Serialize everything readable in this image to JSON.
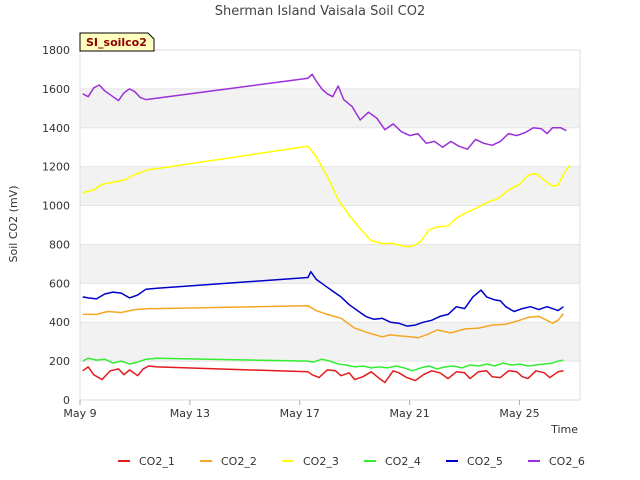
{
  "chart_data": {
    "type": "line",
    "title": "Sherman Island Vaisala Soil CO2",
    "site_tag": "SI_soilco2",
    "xlabel": "Time",
    "ylabel": "Soil CO2 (mV)",
    "x_tick_labels": [
      "May 9",
      "May 13",
      "May 17",
      "May 21",
      "May 25"
    ],
    "x_tick_days": [
      9,
      13,
      17,
      21,
      25
    ],
    "xlim": [
      9,
      27.2
    ],
    "ylim": [
      0,
      1800
    ],
    "y_ticks": [
      0,
      200,
      400,
      600,
      800,
      1000,
      1200,
      1400,
      1600,
      1800
    ],
    "grid": "horizontal alternating bands",
    "legend_position": "bottom",
    "x_unit": "day of May",
    "series": [
      {
        "name": "CO2_1",
        "color": "#e31a1c",
        "points": [
          [
            9.1,
            150
          ],
          [
            9.3,
            170
          ],
          [
            9.5,
            130
          ],
          [
            9.8,
            105
          ],
          [
            10.1,
            150
          ],
          [
            10.4,
            160
          ],
          [
            10.6,
            130
          ],
          [
            10.8,
            155
          ],
          [
            11.1,
            125
          ],
          [
            11.3,
            160
          ],
          [
            11.5,
            175
          ],
          [
            11.8,
            170
          ],
          [
            17.3,
            145
          ],
          [
            17.45,
            130
          ],
          [
            17.7,
            115
          ],
          [
            18.0,
            155
          ],
          [
            18.3,
            150
          ],
          [
            18.5,
            125
          ],
          [
            18.8,
            140
          ],
          [
            19.0,
            105
          ],
          [
            19.3,
            120
          ],
          [
            19.6,
            145
          ],
          [
            19.9,
            110
          ],
          [
            20.1,
            90
          ],
          [
            20.4,
            150
          ],
          [
            20.6,
            140
          ],
          [
            20.9,
            115
          ],
          [
            21.2,
            100
          ],
          [
            21.5,
            130
          ],
          [
            21.8,
            150
          ],
          [
            22.1,
            140
          ],
          [
            22.4,
            110
          ],
          [
            22.7,
            145
          ],
          [
            23.0,
            140
          ],
          [
            23.2,
            110
          ],
          [
            23.5,
            145
          ],
          [
            23.8,
            150
          ],
          [
            24.0,
            120
          ],
          [
            24.3,
            115
          ],
          [
            24.6,
            150
          ],
          [
            24.9,
            145
          ],
          [
            25.1,
            120
          ],
          [
            25.3,
            110
          ],
          [
            25.6,
            150
          ],
          [
            25.9,
            140
          ],
          [
            26.1,
            115
          ],
          [
            26.4,
            145
          ],
          [
            26.6,
            150
          ]
        ]
      },
      {
        "name": "CO2_2",
        "color": "#f5a623",
        "points": [
          [
            9.1,
            440
          ],
          [
            9.6,
            440
          ],
          [
            10.0,
            455
          ],
          [
            10.5,
            450
          ],
          [
            11.0,
            465
          ],
          [
            11.5,
            470
          ],
          [
            11.8,
            470
          ],
          [
            17.3,
            485
          ],
          [
            17.6,
            460
          ],
          [
            18.0,
            440
          ],
          [
            18.5,
            420
          ],
          [
            19.0,
            370
          ],
          [
            19.5,
            345
          ],
          [
            20.0,
            325
          ],
          [
            20.3,
            335
          ],
          [
            20.6,
            330
          ],
          [
            21.0,
            325
          ],
          [
            21.3,
            320
          ],
          [
            21.6,
            335
          ],
          [
            22.0,
            360
          ],
          [
            22.5,
            345
          ],
          [
            23.0,
            365
          ],
          [
            23.5,
            370
          ],
          [
            24.0,
            385
          ],
          [
            24.5,
            390
          ],
          [
            25.0,
            410
          ],
          [
            25.3,
            425
          ],
          [
            25.7,
            430
          ],
          [
            26.0,
            410
          ],
          [
            26.2,
            395
          ],
          [
            26.4,
            410
          ],
          [
            26.6,
            445
          ]
        ]
      },
      {
        "name": "CO2_3",
        "color": "#ffff00",
        "points": [
          [
            9.1,
            1065
          ],
          [
            9.5,
            1080
          ],
          [
            9.8,
            1110
          ],
          [
            10.2,
            1120
          ],
          [
            10.6,
            1130
          ],
          [
            11.0,
            1160
          ],
          [
            11.5,
            1185
          ],
          [
            11.8,
            1190
          ],
          [
            17.3,
            1305
          ],
          [
            17.6,
            1250
          ],
          [
            18.0,
            1150
          ],
          [
            18.4,
            1030
          ],
          [
            18.8,
            950
          ],
          [
            19.2,
            880
          ],
          [
            19.6,
            820
          ],
          [
            20.0,
            805
          ],
          [
            20.4,
            805
          ],
          [
            20.8,
            790
          ],
          [
            21.1,
            790
          ],
          [
            21.4,
            815
          ],
          [
            21.7,
            875
          ],
          [
            22.0,
            890
          ],
          [
            22.4,
            895
          ],
          [
            22.7,
            935
          ],
          [
            23.0,
            960
          ],
          [
            23.4,
            985
          ],
          [
            23.8,
            1015
          ],
          [
            24.2,
            1035
          ],
          [
            24.6,
            1080
          ],
          [
            25.0,
            1110
          ],
          [
            25.3,
            1155
          ],
          [
            25.6,
            1165
          ],
          [
            25.9,
            1130
          ],
          [
            26.2,
            1100
          ],
          [
            26.4,
            1105
          ],
          [
            26.6,
            1160
          ],
          [
            26.8,
            1205
          ]
        ]
      },
      {
        "name": "CO2_4",
        "color": "#33ee33",
        "points": [
          [
            9.1,
            200
          ],
          [
            9.3,
            215
          ],
          [
            9.6,
            205
          ],
          [
            9.9,
            210
          ],
          [
            10.2,
            190
          ],
          [
            10.5,
            200
          ],
          [
            10.8,
            185
          ],
          [
            11.1,
            195
          ],
          [
            11.4,
            210
          ],
          [
            11.8,
            215
          ],
          [
            17.3,
            200
          ],
          [
            17.5,
            195
          ],
          [
            17.8,
            210
          ],
          [
            18.1,
            200
          ],
          [
            18.4,
            185
          ],
          [
            18.7,
            180
          ],
          [
            19.0,
            170
          ],
          [
            19.3,
            175
          ],
          [
            19.6,
            165
          ],
          [
            19.9,
            170
          ],
          [
            20.2,
            165
          ],
          [
            20.5,
            175
          ],
          [
            20.8,
            165
          ],
          [
            21.1,
            150
          ],
          [
            21.4,
            165
          ],
          [
            21.7,
            175
          ],
          [
            22.0,
            160
          ],
          [
            22.3,
            170
          ],
          [
            22.6,
            175
          ],
          [
            22.9,
            165
          ],
          [
            23.2,
            180
          ],
          [
            23.5,
            175
          ],
          [
            23.8,
            185
          ],
          [
            24.1,
            175
          ],
          [
            24.4,
            190
          ],
          [
            24.7,
            180
          ],
          [
            25.0,
            185
          ],
          [
            25.3,
            175
          ],
          [
            25.6,
            180
          ],
          [
            25.9,
            185
          ],
          [
            26.2,
            190
          ],
          [
            26.4,
            200
          ],
          [
            26.6,
            205
          ]
        ]
      },
      {
        "name": "CO2_5",
        "color": "#0000cc",
        "points": [
          [
            9.1,
            530
          ],
          [
            9.3,
            525
          ],
          [
            9.6,
            520
          ],
          [
            9.9,
            545
          ],
          [
            10.2,
            555
          ],
          [
            10.5,
            550
          ],
          [
            10.8,
            525
          ],
          [
            11.1,
            540
          ],
          [
            11.4,
            570
          ],
          [
            11.8,
            575
          ],
          [
            17.3,
            630
          ],
          [
            17.4,
            660
          ],
          [
            17.6,
            620
          ],
          [
            17.9,
            590
          ],
          [
            18.2,
            560
          ],
          [
            18.5,
            530
          ],
          [
            18.8,
            490
          ],
          [
            19.1,
            460
          ],
          [
            19.4,
            430
          ],
          [
            19.7,
            415
          ],
          [
            20.0,
            420
          ],
          [
            20.3,
            400
          ],
          [
            20.6,
            395
          ],
          [
            20.9,
            380
          ],
          [
            21.2,
            385
          ],
          [
            21.5,
            400
          ],
          [
            21.8,
            410
          ],
          [
            22.1,
            430
          ],
          [
            22.4,
            440
          ],
          [
            22.7,
            480
          ],
          [
            23.0,
            470
          ],
          [
            23.3,
            530
          ],
          [
            23.6,
            565
          ],
          [
            23.8,
            530
          ],
          [
            24.1,
            515
          ],
          [
            24.3,
            510
          ],
          [
            24.5,
            480
          ],
          [
            24.8,
            455
          ],
          [
            25.1,
            470
          ],
          [
            25.4,
            480
          ],
          [
            25.7,
            465
          ],
          [
            26.0,
            480
          ],
          [
            26.2,
            470
          ],
          [
            26.4,
            460
          ],
          [
            26.6,
            480
          ]
        ]
      },
      {
        "name": "CO2_6",
        "color": "#9b30d9",
        "points": [
          [
            9.1,
            1575
          ],
          [
            9.3,
            1560
          ],
          [
            9.5,
            1605
          ],
          [
            9.7,
            1620
          ],
          [
            9.9,
            1590
          ],
          [
            10.2,
            1560
          ],
          [
            10.4,
            1540
          ],
          [
            10.6,
            1580
          ],
          [
            10.8,
            1600
          ],
          [
            11.0,
            1585
          ],
          [
            11.2,
            1555
          ],
          [
            11.4,
            1545
          ],
          [
            17.3,
            1655
          ],
          [
            17.45,
            1675
          ],
          [
            17.6,
            1640
          ],
          [
            17.8,
            1600
          ],
          [
            18.0,
            1575
          ],
          [
            18.2,
            1560
          ],
          [
            18.4,
            1615
          ],
          [
            18.6,
            1545
          ],
          [
            18.9,
            1510
          ],
          [
            19.2,
            1440
          ],
          [
            19.5,
            1480
          ],
          [
            19.8,
            1450
          ],
          [
            20.1,
            1390
          ],
          [
            20.4,
            1420
          ],
          [
            20.7,
            1380
          ],
          [
            21.0,
            1360
          ],
          [
            21.3,
            1370
          ],
          [
            21.6,
            1320
          ],
          [
            21.9,
            1330
          ],
          [
            22.2,
            1300
          ],
          [
            22.5,
            1330
          ],
          [
            22.8,
            1305
          ],
          [
            23.1,
            1290
          ],
          [
            23.4,
            1340
          ],
          [
            23.7,
            1320
          ],
          [
            24.0,
            1310
          ],
          [
            24.3,
            1330
          ],
          [
            24.6,
            1370
          ],
          [
            24.9,
            1360
          ],
          [
            25.2,
            1375
          ],
          [
            25.5,
            1400
          ],
          [
            25.8,
            1395
          ],
          [
            26.0,
            1370
          ],
          [
            26.2,
            1400
          ],
          [
            26.5,
            1400
          ],
          [
            26.7,
            1385
          ]
        ]
      }
    ]
  }
}
